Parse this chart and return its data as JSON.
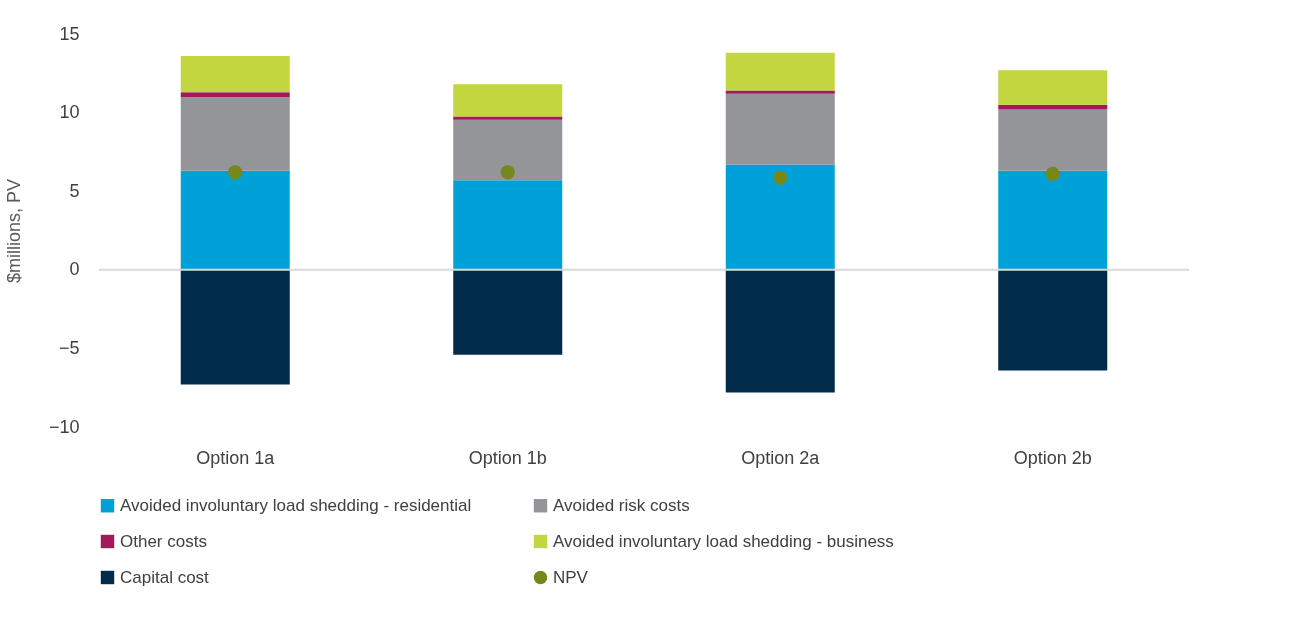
{
  "chart_data": {
    "type": "bar",
    "stacked": true,
    "ylabel": "$millions, PV",
    "categories": [
      "Option 1a",
      "Option 1b",
      "Option 2a",
      "Option 2b"
    ],
    "series": [
      {
        "name": "Avoided involuntary load shedding - residential",
        "color": "#00a0d8",
        "values": [
          6.3,
          5.7,
          6.7,
          6.3
        ]
      },
      {
        "name": "Avoided risk costs",
        "color": "#939598",
        "values": [
          4.7,
          3.85,
          4.5,
          3.9
        ]
      },
      {
        "name": "Other costs",
        "color": "#a3195b",
        "values": [
          0.3,
          0.2,
          0.2,
          0.3
        ]
      },
      {
        "name": "Avoided involuntary load shedding - business",
        "color": "#c4d63f",
        "values": [
          2.3,
          2.05,
          2.4,
          2.2
        ]
      },
      {
        "name": "Capital cost",
        "color": "#002b49",
        "values": [
          -7.3,
          -5.4,
          -7.8,
          -6.4
        ]
      },
      {
        "name": "NPV",
        "type": "scatter",
        "color": "#76871c",
        "values": [
          6.2,
          6.2,
          5.85,
          6.1
        ],
        "marker": "circle"
      }
    ],
    "ylim": [
      -10,
      15
    ],
    "yticks": [
      -10,
      -5,
      0,
      5,
      10,
      15
    ],
    "ref_lines": [
      {
        "axis": "y",
        "value": 0,
        "color": "#d9d9d9"
      }
    ],
    "grid": false,
    "legend": "bottom"
  }
}
